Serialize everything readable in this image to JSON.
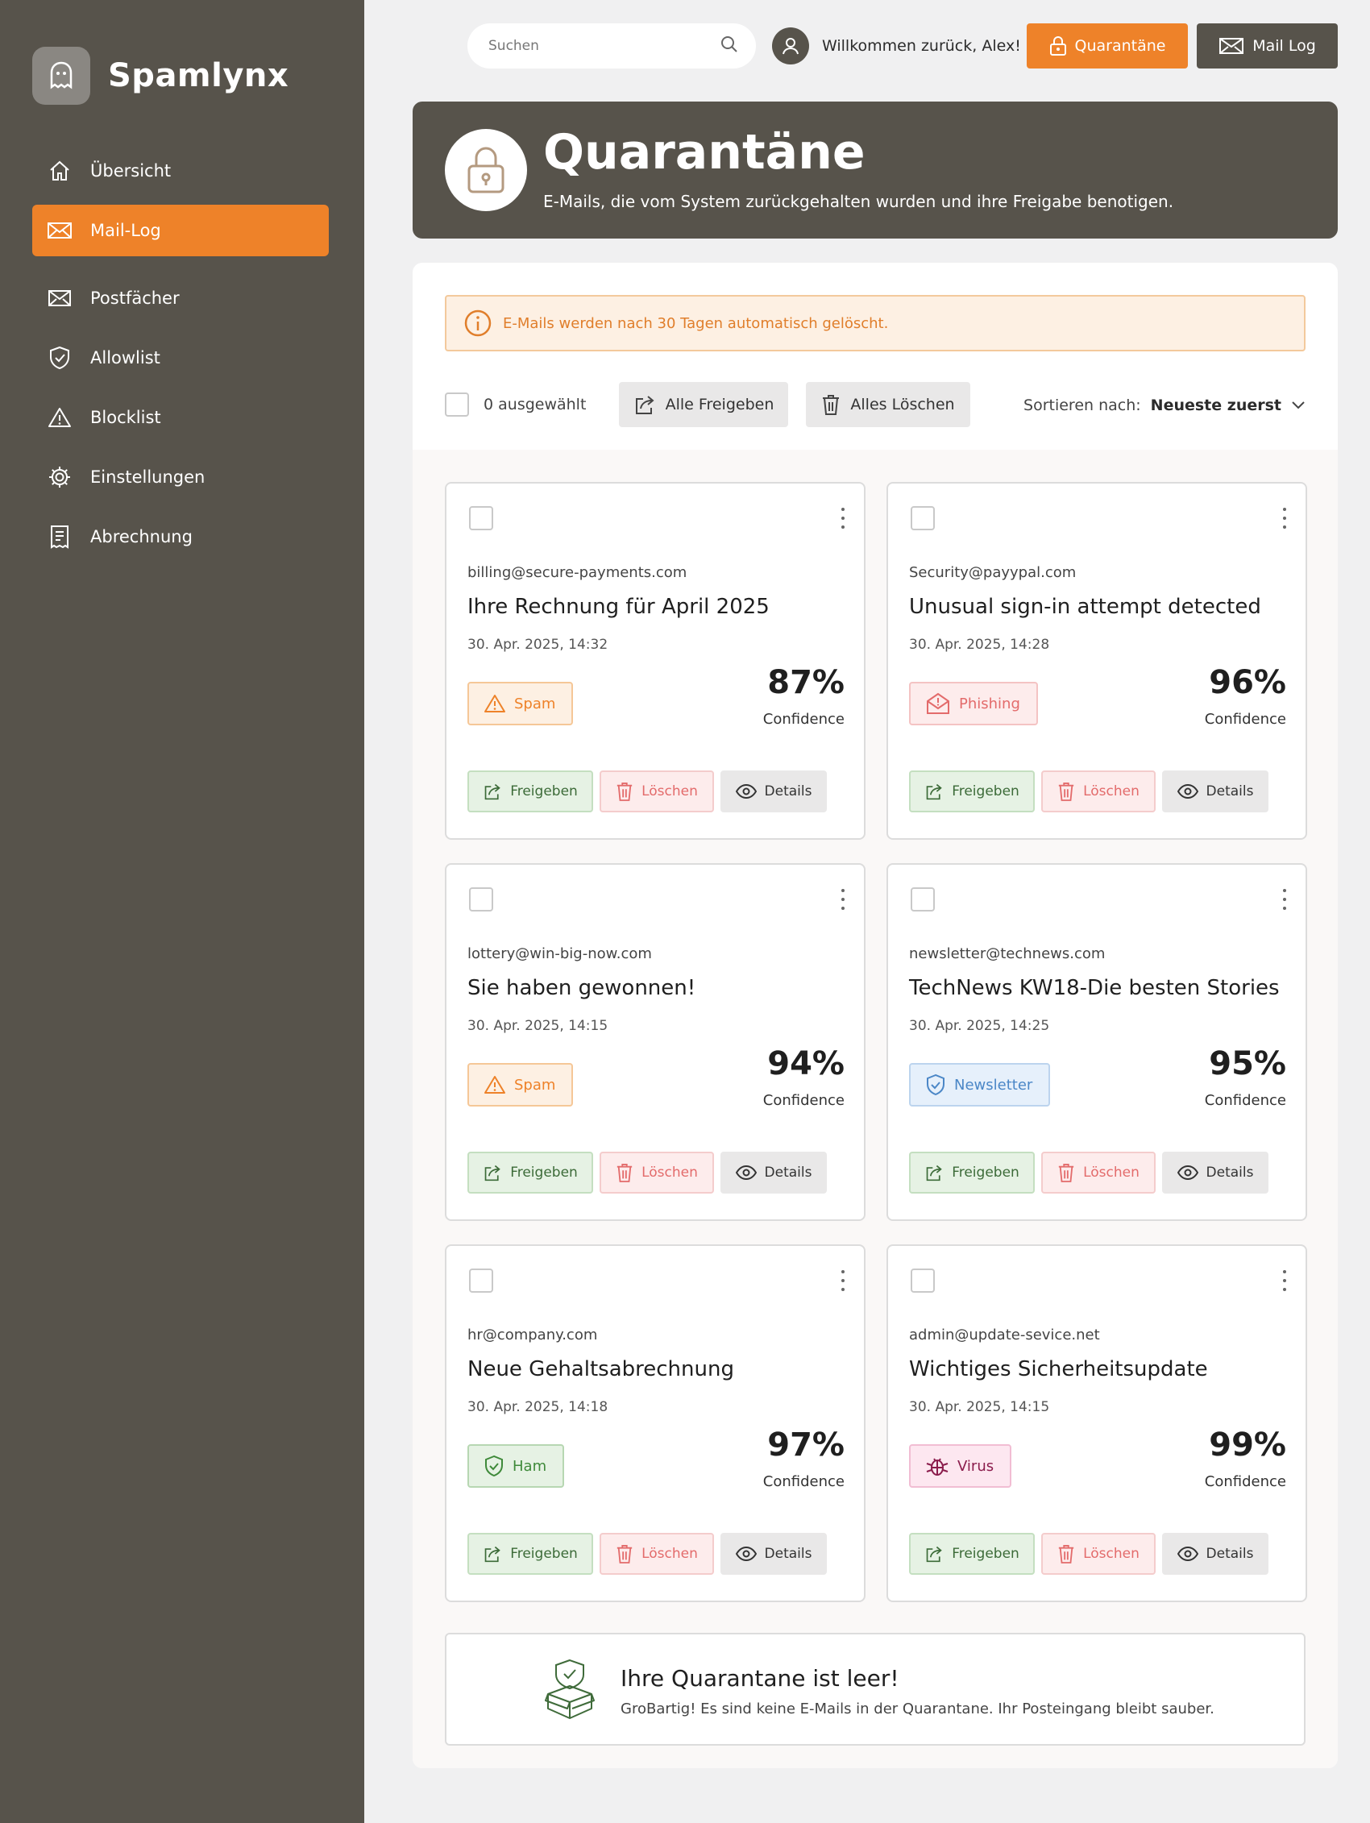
{
  "brand": {
    "name": "Spamlynx",
    "logo_icon": "ghost-icon"
  },
  "sidebar": {
    "items": [
      {
        "label": "Übersicht",
        "icon": "home-icon",
        "active": false
      },
      {
        "label": "Mail-Log",
        "icon": "mail-icon",
        "active": true
      },
      {
        "label": "Postfächer",
        "icon": "mail-icon",
        "active": false
      },
      {
        "label": "Allowlist",
        "icon": "shield-icon",
        "active": false
      },
      {
        "label": "Blocklist",
        "icon": "warning-icon",
        "active": false
      },
      {
        "label": "Einstellungen",
        "icon": "gear-icon",
        "active": false
      },
      {
        "label": "Abrechnung",
        "icon": "receipt-icon",
        "active": false
      }
    ]
  },
  "topbar": {
    "search_placeholder": "Suchen",
    "welcome": "Willkommen zurück, Alex!",
    "quarantine_label": "Quarantäne",
    "maillog_label": "Mail Log"
  },
  "hero": {
    "title": "Quarantäne",
    "subtitle": "E-Mails, die vom System zurückgehalten wurden und ihre Freigabe benotigen."
  },
  "notice": "E-Mails werden nach 30 Tagen automatisch gelöscht.",
  "toolbar": {
    "selected": "0 ausgewählt",
    "release_all": "Alle Freigeben",
    "delete_all": "Alles Löschen",
    "sort_label": "Sortieren nach:",
    "sort_value": "Neueste zuerst"
  },
  "card_actions": {
    "release": "Freigeben",
    "delete": "Löschen",
    "details": "Details",
    "confidence": "Confidence"
  },
  "cards": [
    {
      "sender": "billing@secure-payments.com",
      "subject": "Ihre Rechnung für April 2025",
      "date": "30. Apr. 2025,  14:32",
      "badge": "Spam",
      "badge_type": "spam",
      "confidence": "87%"
    },
    {
      "sender": "Security@payypal.com",
      "subject": "Unusual sign-in attempt detected",
      "date": "30. Apr. 2025,  14:28",
      "badge": "Phishing",
      "badge_type": "phishing",
      "confidence": "96%"
    },
    {
      "sender": "lottery@win-big-now.com",
      "subject": "Sie haben gewonnen!",
      "date": "30. Apr. 2025,  14:15",
      "badge": "Spam",
      "badge_type": "spam",
      "confidence": "94%"
    },
    {
      "sender": "newsletter@technews.com",
      "subject": "TechNews KW18-Die besten Stories",
      "date": "30. Apr. 2025,  14:25",
      "badge": "Newsletter",
      "badge_type": "newsletter",
      "confidence": "95%"
    },
    {
      "sender": "hr@company.com",
      "subject": "Neue Gehaltsabrechnung",
      "date": "30. Apr. 2025,  14:18",
      "badge": "Ham",
      "badge_type": "ham",
      "confidence": "97%"
    },
    {
      "sender": "admin@update-sevice.net",
      "subject": "Wichtiges Sicherheitsupdate",
      "date": "30. Apr. 2025,  14:15",
      "badge": "Virus",
      "badge_type": "virus",
      "confidence": "99%"
    }
  ],
  "empty": {
    "title": "Ihre Quarantane ist leer!",
    "subtitle": "GroBartig! Es sind keine E-Mails in der Quarantane. Ihr Posteingang bleibt sauber."
  },
  "colors": {
    "accent": "#ee8229",
    "sidebar": "#57534b"
  }
}
